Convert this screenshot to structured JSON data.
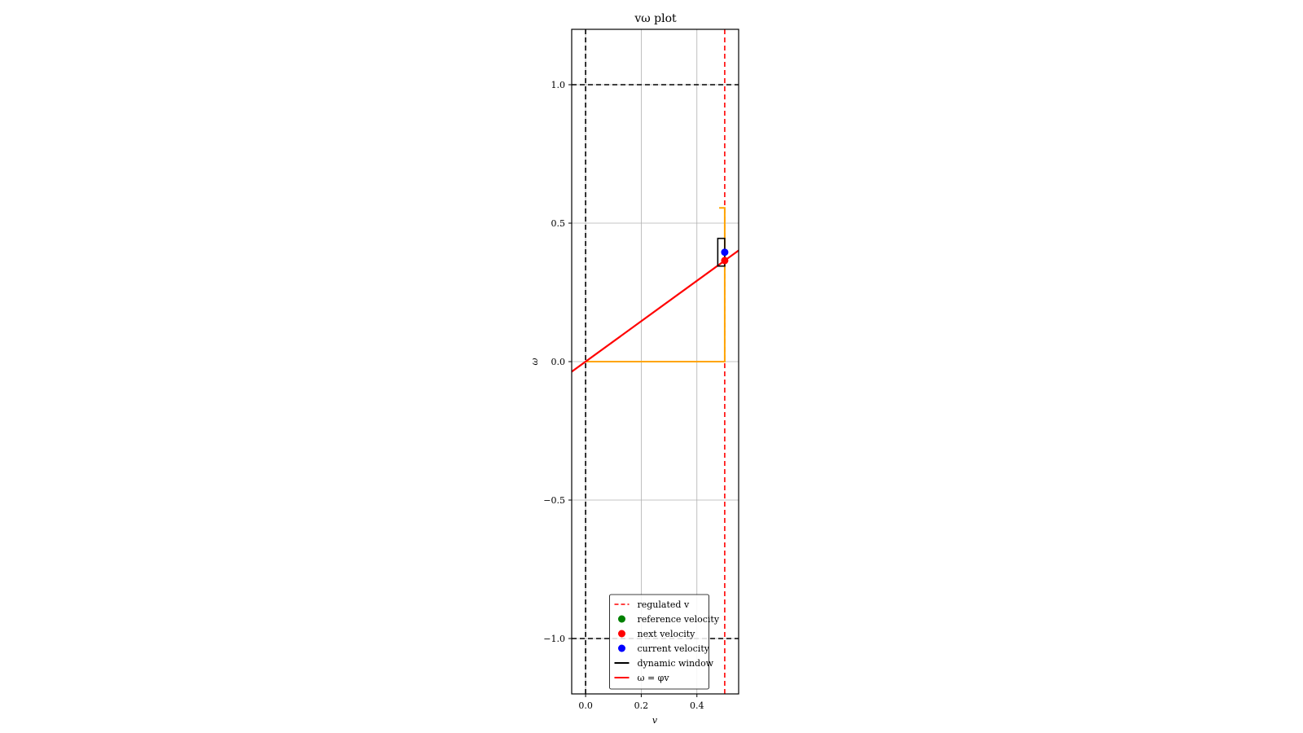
{
  "chart_data": {
    "type": "line",
    "title": "vω plot",
    "xlabel": "v",
    "ylabel": "ω",
    "xlim": [
      -0.05,
      0.55
    ],
    "ylim": [
      -1.2,
      1.2
    ],
    "xticks": [
      0.0,
      0.2,
      0.4
    ],
    "xtick_labels": [
      "0.0",
      "0.2",
      "0.4"
    ],
    "yticks": [
      1.0,
      0.5,
      0.0,
      -0.5,
      -1.0
    ],
    "ytick_labels": [
      "1.0",
      "0.5",
      "0.0",
      "−0.5",
      "−1.0"
    ],
    "grid": true,
    "legend_position": "lower center",
    "bounds": {
      "color": "#000000",
      "v_lines": [
        0.0
      ],
      "w_lines": [
        1.0,
        -1.0
      ]
    },
    "regulated_v": {
      "name": "regulated v",
      "value": 0.5,
      "color": "#ff0000"
    },
    "orange_path": {
      "color": "#ffa500",
      "x": [
        0.0,
        0.5,
        0.5,
        0.48
      ],
      "y": [
        0.0,
        0.0,
        0.555,
        0.555
      ]
    },
    "dynamic_window": {
      "name": "dynamic window",
      "color": "#000000",
      "v": [
        0.475,
        0.5
      ],
      "w": [
        0.345,
        0.445
      ]
    },
    "phi_line": {
      "name": "ω = φv",
      "slope": 0.73,
      "color": "#ff0000"
    },
    "reference_velocity": {
      "name": "reference velocity",
      "color": "#008000",
      "v": null,
      "w": null
    },
    "next_velocity": {
      "name": "next velocity",
      "color": "#ff0000",
      "v": 0.5,
      "w": 0.365
    },
    "current_velocity": {
      "name": "current velocity",
      "color": "#0000ff",
      "v": 0.5,
      "w": 0.395
    },
    "legend": [
      {
        "label": "regulated v",
        "kind": "dash",
        "color": "#ff0000"
      },
      {
        "label": "reference velocity",
        "kind": "dot",
        "color": "#008000"
      },
      {
        "label": "next velocity",
        "kind": "dot",
        "color": "#ff0000"
      },
      {
        "label": "current velocity",
        "kind": "dot",
        "color": "#0000ff"
      },
      {
        "label": "dynamic window",
        "kind": "line",
        "color": "#000000"
      },
      {
        "label": "ω = φv",
        "kind": "line",
        "color": "#ff0000"
      }
    ]
  }
}
